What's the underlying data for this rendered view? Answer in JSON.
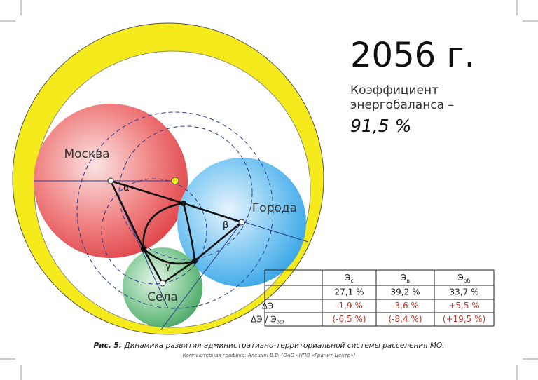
{
  "header": {
    "year": "2056 г.",
    "coef_line1": "Коэффициент",
    "coef_line2": "энергобаланса –",
    "coef_value": "91,5 %"
  },
  "nodes": [
    {
      "label": "Москва",
      "angle": "α"
    },
    {
      "label": "Города",
      "angle": "β"
    },
    {
      "label": "Сёла",
      "angle": "γ"
    }
  ],
  "table": {
    "header": [
      {
        "text": "Э",
        "sub": "с"
      },
      {
        "text": "Э",
        "sub": "в"
      },
      {
        "text": "Э",
        "sub": "об"
      }
    ],
    "rows": [
      {
        "cells": [
          "27,1 %",
          "39,2 %",
          "33,7 %"
        ]
      },
      {
        "label": "ΔЭ",
        "cells": [
          "-1,9 %",
          "-3,6 %",
          "+5,5 %"
        ]
      },
      {
        "label": "ΔЭ / Э",
        "label_sub": "opt",
        "cells": [
          "(-6,5 %)",
          "(-8,4 %)",
          "(+19,5 %)"
        ]
      }
    ]
  },
  "caption": {
    "prefix": "Рис. 5.",
    "text": "Динамика развития административно-территориальной системы расселения МО.",
    "credit": "Компьютерная графика: Алешин В.В. (ОАО «НПО «Гранит-Центр»)"
  }
}
